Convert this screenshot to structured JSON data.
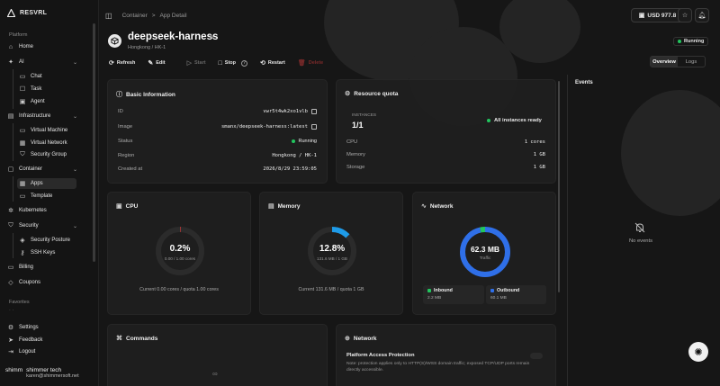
{
  "brand": "RESVRL",
  "sidebar": {
    "section_platform": "Platform",
    "home": "Home",
    "ai": "AI",
    "chat": "Chat",
    "task": "Task",
    "agent": "Agent",
    "infrastructure": "Infrastructure",
    "virtual_machine": "Virtual Machine",
    "virtual_network": "Virtual Network",
    "security_group": "Security Group",
    "container": "Container",
    "apps": "Apps",
    "template": "Template",
    "kubernetes": "Kubernetes",
    "security": "Security",
    "security_posture": "Security Posture",
    "ssh_keys": "SSH Keys",
    "billing": "Billing",
    "coupons": "Coupons",
    "section_favorites": "Favorites",
    "settings": "Settings",
    "feedback": "Feedback",
    "logout": "Logout"
  },
  "user": {
    "name": "shimmer tech",
    "email": "karen@shimmersoft.net",
    "avatar_text": "shimm"
  },
  "breadcrumb": {
    "parent": "Container",
    "sep": ">",
    "current": "App Detail"
  },
  "balance": "USD 977.8",
  "app": {
    "name": "deepseek-harness",
    "region_sub": "Hongkong / HK-1",
    "status": "Running"
  },
  "actions": {
    "refresh": "Refresh",
    "edit": "Edit",
    "start": "Start",
    "stop": "Stop",
    "restart": "Restart",
    "delete": "Delete"
  },
  "tabs": {
    "overview": "Overview",
    "logs": "Logs"
  },
  "basic_info": {
    "title": "Basic Information",
    "id_label": "ID",
    "id_value": "vwr5t4wk2xo1vlb",
    "image_label": "Image",
    "image_value": "smanx/deepseek-harness:latest",
    "status_label": "Status",
    "status_value": "Running",
    "region_label": "Region",
    "region_value": "Hongkong / HK-1",
    "created_label": "Created at",
    "created_value": "2026/8/29 23:59:05"
  },
  "quota": {
    "title": "Resource quota",
    "instances_label": "INSTANCES",
    "instances_value": "1/1",
    "instances_status": "All instances ready",
    "cpu_label": "CPU",
    "cpu_value": "1 cores",
    "memory_label": "Memory",
    "memory_value": "1 GB",
    "storage_label": "Storage",
    "storage_value": "1 GB"
  },
  "cpu": {
    "title": "CPU",
    "value": "0.2%",
    "percent": 0.2,
    "sub": "0.00 / 1.00 cores",
    "caption": "Current 0.00 cores / quota 1.00 cores",
    "color": "#e23b3b"
  },
  "memory": {
    "title": "Memory",
    "value": "12.8%",
    "percent": 12.8,
    "sub": "131.6 MB / 1 GB",
    "caption": "Current 131.6 MB / quota 1 GB",
    "color": "#1e9be8"
  },
  "network": {
    "title": "Network",
    "total": "62.3 MB",
    "total_label": "Traffic",
    "inbound_label": "Inbound",
    "inbound_value": "2.2 MB",
    "inbound_mb": 2.2,
    "outbound_label": "Outbound",
    "outbound_value": "60.1 MB",
    "outbound_mb": 60.1,
    "inbound_color": "#22c55e",
    "outbound_color": "#2f6fe8"
  },
  "commands": {
    "title": "Commands"
  },
  "network_card": {
    "title": "Network",
    "access_title": "Platform Access Protection",
    "access_desc": "Note: protection applies only to HTTP(S)/WSS domain traffic; exposed TCP/UDP ports remain directly accessible."
  },
  "events": {
    "title": "Events",
    "empty": "No events"
  }
}
